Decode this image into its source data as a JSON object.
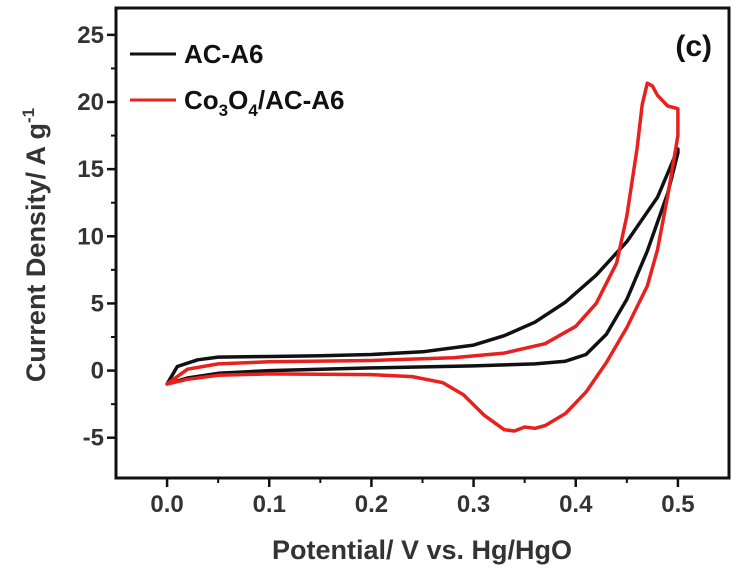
{
  "chart_data": {
    "type": "line",
    "panel_label": "(c)",
    "xlabel": "Potential/ V vs. Hg/HgO",
    "ylabel_main": "Current Density/ A g",
    "ylabel_sup": "-1",
    "xlim": [
      -0.05,
      0.55
    ],
    "ylim": [
      -8,
      27
    ],
    "x_ticks": [
      0.0,
      0.1,
      0.2,
      0.3,
      0.4,
      0.5
    ],
    "x_tick_labels": [
      "0.0",
      "0.1",
      "0.2",
      "0.3",
      "0.4",
      "0.5"
    ],
    "y_ticks": [
      -5,
      0,
      5,
      10,
      15,
      20,
      25
    ],
    "y_tick_labels": [
      "-5",
      "0",
      "5",
      "10",
      "15",
      "20",
      "25"
    ],
    "grid": false,
    "legend_position": "top-left",
    "legend": [
      {
        "label": "AC-A6",
        "color": "#111111"
      },
      {
        "main": "Co",
        "sub1": "3",
        "mid": "O",
        "sub2": "4",
        "rest": "/AC-A6",
        "color": "#e8211e"
      }
    ],
    "series": [
      {
        "name": "AC-A6",
        "color": "#111111",
        "points": [
          [
            0.0,
            -1.0
          ],
          [
            0.01,
            0.3
          ],
          [
            0.03,
            0.8
          ],
          [
            0.05,
            1.0
          ],
          [
            0.1,
            1.05
          ],
          [
            0.15,
            1.1
          ],
          [
            0.2,
            1.2
          ],
          [
            0.25,
            1.4
          ],
          [
            0.3,
            1.9
          ],
          [
            0.33,
            2.6
          ],
          [
            0.36,
            3.6
          ],
          [
            0.39,
            5.1
          ],
          [
            0.42,
            7.1
          ],
          [
            0.45,
            9.6
          ],
          [
            0.48,
            12.9
          ],
          [
            0.5,
            16.5
          ],
          [
            0.5,
            16.2
          ],
          [
            0.49,
            13.2
          ],
          [
            0.47,
            8.9
          ],
          [
            0.45,
            5.3
          ],
          [
            0.43,
            2.7
          ],
          [
            0.41,
            1.2
          ],
          [
            0.39,
            0.7
          ],
          [
            0.36,
            0.5
          ],
          [
            0.3,
            0.35
          ],
          [
            0.2,
            0.2
          ],
          [
            0.1,
            0.0
          ],
          [
            0.05,
            -0.2
          ],
          [
            0.02,
            -0.55
          ],
          [
            0.0,
            -1.0
          ]
        ]
      },
      {
        "name": "Co3O4/AC-A6",
        "color": "#e8211e",
        "points": [
          [
            0.0,
            -1.0
          ],
          [
            0.02,
            0.1
          ],
          [
            0.05,
            0.5
          ],
          [
            0.1,
            0.65
          ],
          [
            0.2,
            0.75
          ],
          [
            0.28,
            0.95
          ],
          [
            0.33,
            1.3
          ],
          [
            0.37,
            2.0
          ],
          [
            0.4,
            3.3
          ],
          [
            0.42,
            5.0
          ],
          [
            0.44,
            8.0
          ],
          [
            0.45,
            11.5
          ],
          [
            0.46,
            16.5
          ],
          [
            0.465,
            19.8
          ],
          [
            0.47,
            21.4
          ],
          [
            0.475,
            21.2
          ],
          [
            0.48,
            20.5
          ],
          [
            0.49,
            19.7
          ],
          [
            0.5,
            19.5
          ],
          [
            0.5,
            17.5
          ],
          [
            0.49,
            13.0
          ],
          [
            0.48,
            9.0
          ],
          [
            0.47,
            6.3
          ],
          [
            0.45,
            3.2
          ],
          [
            0.43,
            0.6
          ],
          [
            0.41,
            -1.6
          ],
          [
            0.39,
            -3.2
          ],
          [
            0.37,
            -4.1
          ],
          [
            0.36,
            -4.3
          ],
          [
            0.35,
            -4.2
          ],
          [
            0.34,
            -4.5
          ],
          [
            0.33,
            -4.4
          ],
          [
            0.31,
            -3.3
          ],
          [
            0.29,
            -1.8
          ],
          [
            0.27,
            -0.9
          ],
          [
            0.24,
            -0.45
          ],
          [
            0.2,
            -0.3
          ],
          [
            0.1,
            -0.25
          ],
          [
            0.05,
            -0.35
          ],
          [
            0.02,
            -0.65
          ],
          [
            0.0,
            -1.0
          ]
        ]
      }
    ]
  }
}
